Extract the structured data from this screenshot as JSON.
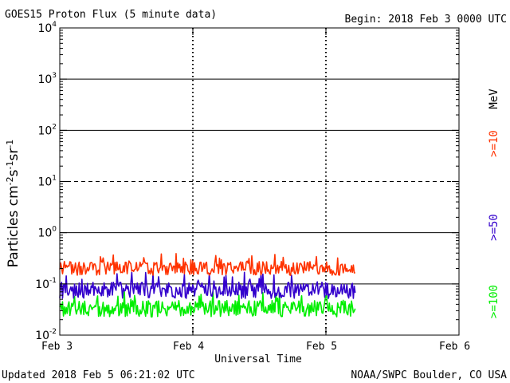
{
  "chart_data": {
    "type": "line",
    "title": "GOES15 Proton Flux (5 minute data)",
    "begin_label": "Begin: 2018 Feb 3 0000 UTC",
    "xlabel": "Universal Time",
    "ylabel_main": "Particles cm",
    "ylabel_parts": [
      "-2",
      "s",
      "-1",
      "sr",
      "-1"
    ],
    "y_scale": "log",
    "ylim": [
      0.01,
      10000
    ],
    "y_ticks": [
      {
        "base": "10",
        "exp": "4"
      },
      {
        "base": "10",
        "exp": "3"
      },
      {
        "base": "10",
        "exp": "2"
      },
      {
        "base": "10",
        "exp": "1"
      },
      {
        "base": "10",
        "exp": "0"
      },
      {
        "base": "10",
        "exp": "-1"
      },
      {
        "base": "10",
        "exp": "-2"
      }
    ],
    "x_range_days": [
      0,
      3
    ],
    "x_ticks": [
      "Feb 3",
      "Feb 4",
      "Feb 5",
      "Feb 6"
    ],
    "series": [
      {
        "name": ">=10",
        "unit": "MeV",
        "color": "#ff3300",
        "mean": 0.2,
        "min": 0.13,
        "max": 0.4
      },
      {
        "name": ">=50",
        "color": "#3300cc",
        "mean": 0.075,
        "min": 0.045,
        "max": 0.17
      },
      {
        "name": ">=100",
        "color": "#00ee00",
        "mean": 0.033,
        "min": 0.022,
        "max": 0.085
      }
    ],
    "data_end_day": 2.22,
    "dashed_threshold": 10,
    "legend_position": "right, vertical"
  },
  "footer": {
    "updated": "Updated 2018 Feb  5 06:21:02 UTC",
    "source": "NOAA/SWPC Boulder, CO USA"
  }
}
